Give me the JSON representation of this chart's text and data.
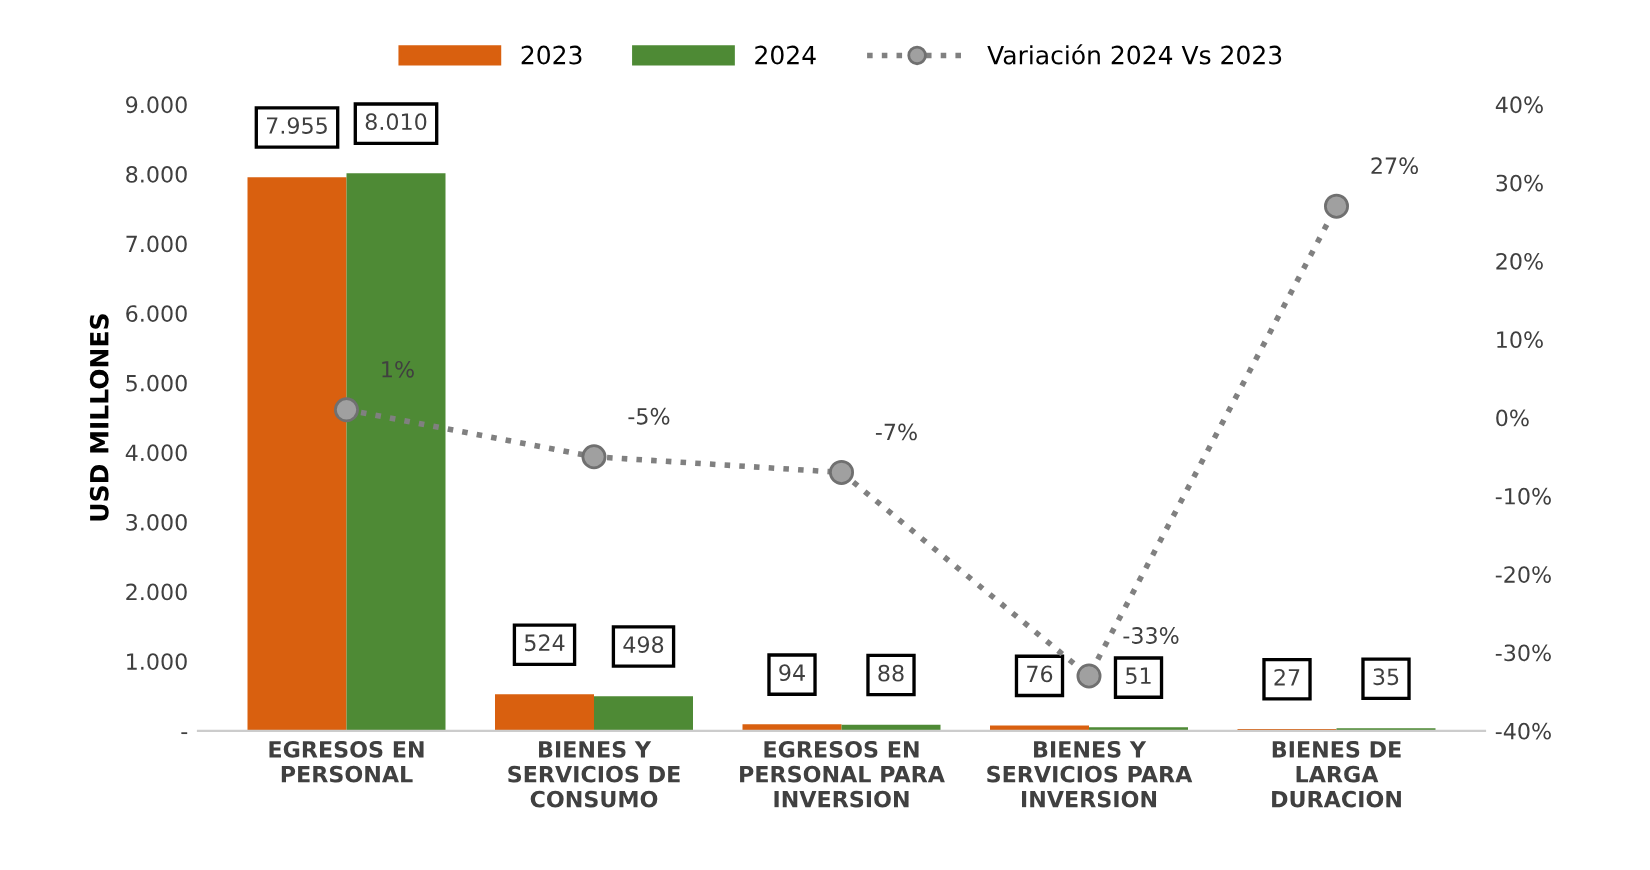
{
  "chart_data": {
    "type": "bar",
    "ylabel": "USD MILLONES",
    "categories": [
      "EGRESOS EN\nPERSONAL",
      "BIENES Y\nSERVICIOS DE\nCONSUMO",
      "EGRESOS EN\nPERSONAL PARA\nINVERSION",
      "BIENES Y\nSERVICIOS PARA\nINVERSION",
      "BIENES DE\nLARGA\nDURACION"
    ],
    "series": [
      {
        "name": "2023",
        "color": "#d9600f",
        "values": [
          7955,
          524,
          94,
          76,
          27
        ],
        "value_labels": [
          "7.955",
          "524",
          "94",
          "76",
          "27"
        ]
      },
      {
        "name": "2024",
        "color": "#4e8a35",
        "values": [
          8010,
          498,
          88,
          51,
          35
        ],
        "value_labels": [
          "8.010",
          "498",
          "88",
          "51",
          "35"
        ]
      },
      {
        "name": "Variación 2024 Vs 2023",
        "type": "line",
        "axis": "y2",
        "color": "#808080",
        "marker": "circle",
        "line_style": "dotted",
        "values": [
          1,
          -5,
          -7,
          -33,
          27
        ],
        "value_labels": [
          "1%",
          "-5%",
          "-7%",
          "-33%",
          "27%"
        ]
      }
    ],
    "ylim": [
      0,
      9000
    ],
    "yticks": [
      {
        "value": 0,
        "label": "-"
      },
      {
        "value": 1000,
        "label": "1.000"
      },
      {
        "value": 2000,
        "label": "2.000"
      },
      {
        "value": 3000,
        "label": "3.000"
      },
      {
        "value": 4000,
        "label": "4.000"
      },
      {
        "value": 5000,
        "label": "5.000"
      },
      {
        "value": 6000,
        "label": "6.000"
      },
      {
        "value": 7000,
        "label": "7.000"
      },
      {
        "value": 8000,
        "label": "8.000"
      },
      {
        "value": 9000,
        "label": "9.000"
      }
    ],
    "y2lim": [
      -40,
      40
    ],
    "y2ticks": [
      {
        "value": -40,
        "label": "-40%"
      },
      {
        "value": -30,
        "label": "-30%"
      },
      {
        "value": -20,
        "label": "-20%"
      },
      {
        "value": -10,
        "label": "-10%"
      },
      {
        "value": 0,
        "label": "0%"
      },
      {
        "value": 10,
        "label": "10%"
      },
      {
        "value": 20,
        "label": "20%"
      },
      {
        "value": 30,
        "label": "30%"
      },
      {
        "value": 40,
        "label": "40%"
      }
    ],
    "grid": false,
    "legend": "top"
  }
}
